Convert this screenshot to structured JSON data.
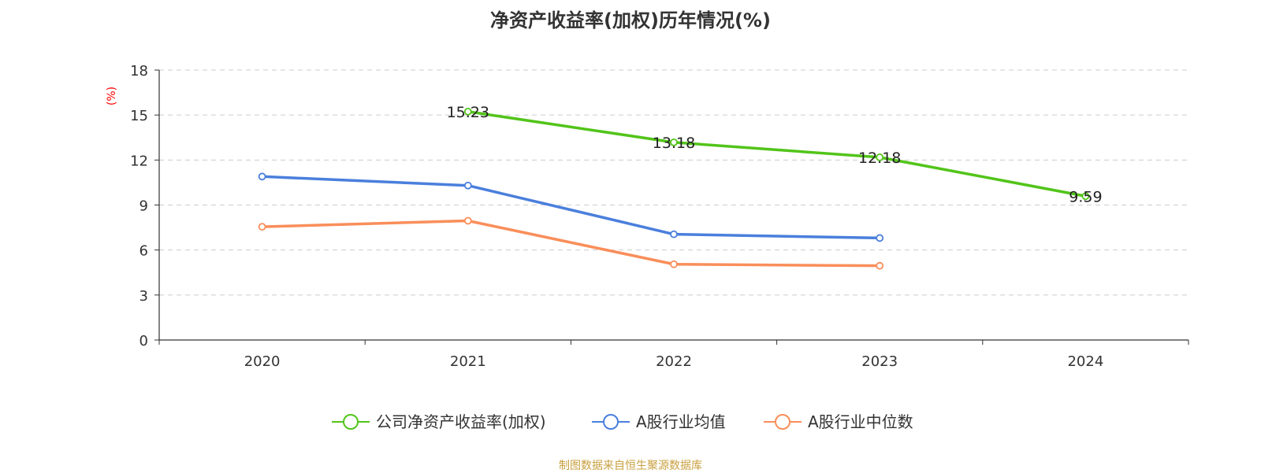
{
  "chart_data": {
    "type": "line",
    "title": "净资产收益率(加权)历年情况(%)",
    "ylabel": "(%)",
    "ylabel_color": "#ff0000",
    "categories": [
      "2020",
      "2021",
      "2022",
      "2023",
      "2024"
    ],
    "ylim": [
      0,
      18
    ],
    "yticks": [
      0,
      3,
      6,
      9,
      12,
      15,
      18
    ],
    "grid": true,
    "legend_position": "bottom",
    "series": [
      {
        "name": "公司净资产收益率(加权)",
        "color": "#52c41a",
        "values": [
          null,
          15.23,
          13.18,
          12.18,
          9.59
        ],
        "labels": [
          "",
          "15.23",
          "13.18",
          "12.18",
          "9.59"
        ]
      },
      {
        "name": "A股行业均值",
        "color": "#4a7fdc",
        "values": [
          10.9,
          10.3,
          7.05,
          6.8,
          null
        ],
        "labels": []
      },
      {
        "name": "A股行业中位数",
        "color": "#f98e5a",
        "values": [
          7.55,
          7.95,
          5.05,
          4.95,
          null
        ],
        "labels": []
      }
    ]
  },
  "footer": {
    "source": "制图数据来自恒生聚源数据库"
  }
}
